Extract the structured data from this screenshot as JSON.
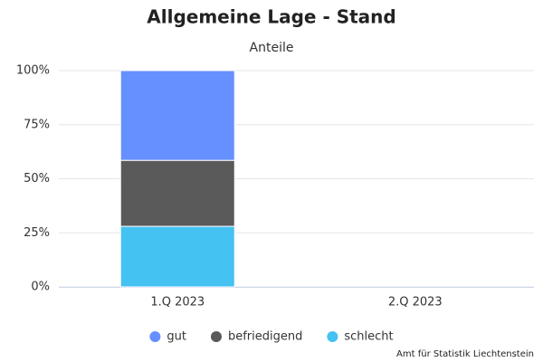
{
  "chart_data": {
    "type": "stacked_bar",
    "title": "Allgemeine Lage - Stand",
    "subtitle": "Anteile",
    "categories": [
      "1.Q 2023",
      "2.Q 2023"
    ],
    "series": [
      {
        "name": "gut",
        "color": "#6690ff",
        "values": [
          41.5,
          null
        ]
      },
      {
        "name": "befriedigend",
        "color": "#5a5a5a",
        "values": [
          30.5,
          null
        ]
      },
      {
        "name": "schlecht",
        "color": "#44c2f2",
        "values": [
          28,
          null
        ]
      }
    ],
    "ylim": [
      0,
      100
    ],
    "yticks": [
      {
        "value": 0,
        "label": "0%"
      },
      {
        "value": 25,
        "label": "25%"
      },
      {
        "value": 50,
        "label": "50%"
      },
      {
        "value": 75,
        "label": "75%"
      },
      {
        "value": 100,
        "label": "100%"
      }
    ],
    "grid": true,
    "legend": "bottom",
    "credits": "Amt für Statistik Liechtenstein"
  }
}
